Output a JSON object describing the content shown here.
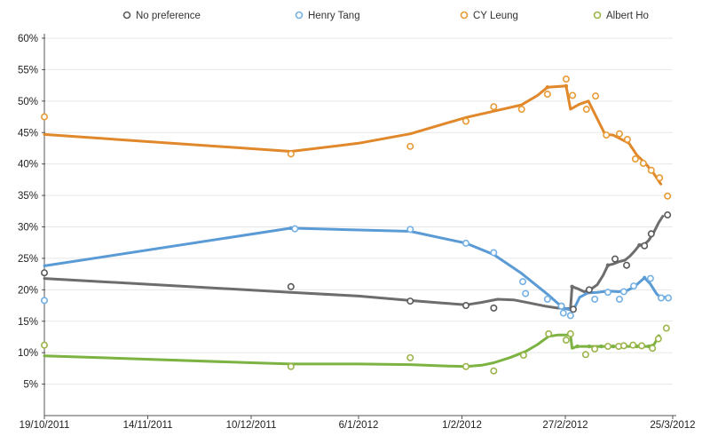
{
  "chart_data": {
    "type": "line",
    "title": "",
    "x_axis": {
      "max_day": 158,
      "ticks": [
        {
          "label": "19/10/2011",
          "day": 0
        },
        {
          "label": "14/11/2011",
          "day": 26
        },
        {
          "label": "10/12/2011",
          "day": 52
        },
        {
          "label": "6/1/2012",
          "day": 79
        },
        {
          "label": "1/2/2012",
          "day": 105
        },
        {
          "label": "27/2/2012",
          "day": 131
        },
        {
          "label": "25/3/2012",
          "day": 158
        }
      ]
    },
    "y_axis": {
      "min": 0,
      "max": 60,
      "step": 5,
      "unit": "%"
    },
    "grid_color": "#e7e7e7",
    "axis_color": "#545454",
    "label_color": "#222222",
    "legend_text_color": "#333333",
    "series": [
      {
        "name": "No preference",
        "line_color": "#6d6d6d",
        "point_color": "#5a5a5a",
        "trend": [
          [
            0,
            21.8
          ],
          [
            62,
            19.6
          ],
          [
            79,
            19.0
          ],
          [
            92,
            18.3
          ],
          [
            100,
            17.9
          ],
          [
            106,
            17.6
          ],
          [
            110,
            18.0
          ],
          [
            114,
            18.5
          ],
          [
            118,
            18.4
          ],
          [
            122,
            17.9
          ],
          [
            126,
            17.4
          ],
          [
            129,
            17.1
          ],
          [
            132.3,
            17.0
          ],
          [
            132.7,
            20.5
          ],
          [
            134,
            20.2
          ],
          [
            135.7,
            19.7
          ],
          [
            137,
            19.9
          ],
          [
            139,
            20.8
          ],
          [
            140.5,
            22.3
          ],
          [
            141.7,
            23.9
          ],
          [
            143,
            24.1
          ],
          [
            144.6,
            24.5
          ],
          [
            146,
            24.7
          ],
          [
            147.3,
            25.4
          ],
          [
            148.6,
            26.3
          ],
          [
            149.6,
            27.1
          ],
          [
            150.9,
            27.2
          ],
          [
            152,
            27.9
          ],
          [
            153.3,
            29.2
          ],
          [
            154.5,
            30.7
          ],
          [
            155.5,
            31.7
          ]
        ],
        "polls": [
          [
            0,
            22.7
          ],
          [
            62,
            20.5
          ],
          [
            92,
            18.2
          ],
          [
            106,
            17.5
          ],
          [
            113,
            17.1
          ],
          [
            130,
            17.4
          ],
          [
            133,
            16.9
          ],
          [
            137,
            20.0
          ],
          [
            143.5,
            24.9
          ],
          [
            146.4,
            23.9
          ],
          [
            150.9,
            27.0
          ],
          [
            152.6,
            28.9
          ],
          [
            156.7,
            31.9
          ]
        ],
        "dots": [
          [
            132.7,
            20.5
          ],
          [
            141.7,
            23.9
          ],
          [
            149.6,
            27.1
          ]
        ]
      },
      {
        "name": "Henry Tang",
        "line_color": "#5b9bd5",
        "point_color": "#74b0e4",
        "trend": [
          [
            0,
            23.8
          ],
          [
            62,
            29.8
          ],
          [
            92,
            29.3
          ],
          [
            106,
            27.4
          ],
          [
            113,
            25.6
          ],
          [
            120,
            22.6
          ],
          [
            126.5,
            19.3
          ],
          [
            129,
            17.9
          ],
          [
            130.5,
            17.1
          ],
          [
            132.3,
            16.8
          ],
          [
            133.2,
            17.0
          ],
          [
            134.6,
            18.8
          ],
          [
            136.6,
            19.5
          ],
          [
            139,
            19.6
          ],
          [
            141.7,
            19.8
          ],
          [
            144.4,
            19.7
          ],
          [
            146.6,
            19.9
          ],
          [
            148.2,
            20.4
          ],
          [
            150,
            21.4
          ],
          [
            150.9,
            21.9
          ],
          [
            152.3,
            21.0
          ],
          [
            154,
            19.3
          ],
          [
            154.9,
            18.8
          ],
          [
            156.4,
            18.8
          ]
        ],
        "polls": [
          [
            0,
            18.3
          ],
          [
            63,
            29.7
          ],
          [
            92,
            29.6
          ],
          [
            106,
            27.4
          ],
          [
            113,
            25.9
          ],
          [
            120.3,
            21.3
          ],
          [
            121,
            19.4
          ],
          [
            126.5,
            18.5
          ],
          [
            130,
            17.4
          ],
          [
            130.5,
            16.3
          ],
          [
            132.3,
            15.9
          ],
          [
            138.4,
            18.5
          ],
          [
            141.7,
            19.6
          ],
          [
            144.6,
            18.5
          ],
          [
            145.7,
            19.7
          ],
          [
            148.2,
            20.6
          ],
          [
            152.4,
            21.8
          ],
          [
            155.1,
            18.7
          ],
          [
            156.9,
            18.7
          ]
        ],
        "dots": [
          [
            62,
            29.8
          ],
          [
            106,
            27.4
          ],
          [
            130.5,
            17.1
          ],
          [
            150.9,
            21.9
          ]
        ]
      },
      {
        "name": "CY Leung",
        "line_color": "#e0882b",
        "point_color": "#e89a35",
        "trend": [
          [
            0,
            44.7
          ],
          [
            62,
            42.0
          ],
          [
            79,
            43.3
          ],
          [
            92,
            44.8
          ],
          [
            106,
            47.4
          ],
          [
            113,
            48.4
          ],
          [
            120,
            49.4
          ],
          [
            124,
            50.9
          ],
          [
            126.5,
            52.2
          ],
          [
            131.2,
            52.4
          ],
          [
            132.3,
            48.7
          ],
          [
            134.5,
            49.5
          ],
          [
            136.8,
            50.0
          ],
          [
            141,
            44.7
          ],
          [
            143,
            44.6
          ],
          [
            147,
            43.3
          ],
          [
            149,
            41.4
          ],
          [
            151,
            40.2
          ],
          [
            153,
            38.7
          ],
          [
            155,
            36.8
          ]
        ],
        "polls": [
          [
            0,
            47.5
          ],
          [
            62,
            41.6
          ],
          [
            92,
            42.8
          ],
          [
            106,
            46.8
          ],
          [
            113,
            49.1
          ],
          [
            120,
            48.7
          ],
          [
            126.5,
            51.1
          ],
          [
            131.2,
            53.5
          ],
          [
            132.8,
            50.9
          ],
          [
            136.3,
            48.7
          ],
          [
            138.6,
            50.8
          ],
          [
            141.3,
            44.6
          ],
          [
            144.6,
            44.8
          ],
          [
            146.6,
            43.9
          ],
          [
            148.6,
            40.8
          ],
          [
            150.6,
            40.1
          ],
          [
            152.6,
            39.0
          ],
          [
            154.7,
            37.8
          ],
          [
            156.7,
            34.9
          ]
        ],
        "dots": [
          [
            126.5,
            52.2
          ],
          [
            131.2,
            52.4
          ]
        ]
      },
      {
        "name": "Albert Ho",
        "line_color": "#7cb342",
        "point_color": "#9bb54a",
        "trend": [
          [
            0,
            9.5
          ],
          [
            52,
            8.4
          ],
          [
            62,
            8.2
          ],
          [
            79,
            8.2
          ],
          [
            92,
            8.1
          ],
          [
            100,
            7.9
          ],
          [
            106,
            7.8
          ],
          [
            110,
            8.0
          ],
          [
            113,
            8.4
          ],
          [
            117,
            9.2
          ],
          [
            121,
            10.2
          ],
          [
            124,
            11.3
          ],
          [
            126.8,
            12.6
          ],
          [
            129,
            12.8
          ],
          [
            132.3,
            12.8
          ],
          [
            132.7,
            10.7
          ],
          [
            134,
            11.0
          ],
          [
            137,
            11.0
          ],
          [
            140,
            11.0
          ],
          [
            143,
            11.0
          ],
          [
            146,
            11.0
          ],
          [
            149,
            11.0
          ],
          [
            152,
            11.0
          ],
          [
            153.3,
            11.3
          ],
          [
            154.5,
            12.6
          ]
        ],
        "polls": [
          [
            0,
            11.2
          ],
          [
            62,
            7.8
          ],
          [
            92,
            9.2
          ],
          [
            106,
            7.8
          ],
          [
            113,
            7.1
          ],
          [
            120.5,
            9.6
          ],
          [
            126.8,
            13.0
          ],
          [
            131.2,
            12.0
          ],
          [
            132.3,
            13.0
          ],
          [
            136.1,
            9.7
          ],
          [
            138.4,
            10.6
          ],
          [
            141.7,
            11.0
          ],
          [
            144.4,
            11.0
          ],
          [
            145.7,
            11.1
          ],
          [
            148,
            11.2
          ],
          [
            150.2,
            11.1
          ],
          [
            152.9,
            10.7
          ],
          [
            154.4,
            12.2
          ],
          [
            156.4,
            13.9
          ]
        ],
        "dots": [
          [
            134,
            11.0
          ],
          [
            137,
            11.0
          ],
          [
            140,
            11.0
          ],
          [
            143,
            11.0
          ],
          [
            146,
            11.0
          ],
          [
            149,
            11.0
          ],
          [
            152,
            11.0
          ],
          [
            154.5,
            12.6
          ]
        ]
      }
    ]
  }
}
